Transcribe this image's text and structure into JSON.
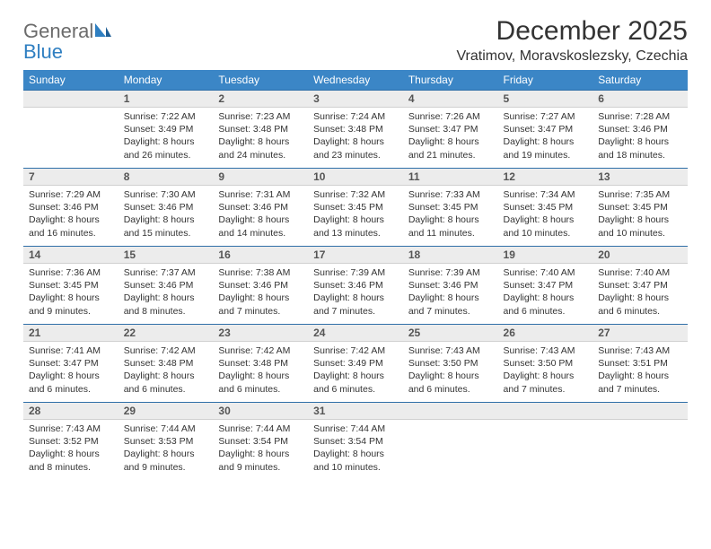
{
  "brand": {
    "general": "General",
    "blue": "Blue"
  },
  "title": "December 2025",
  "location": "Vratimov, Moravskoslezsky, Czechia",
  "day_headers": [
    "Sunday",
    "Monday",
    "Tuesday",
    "Wednesday",
    "Thursday",
    "Friday",
    "Saturday"
  ],
  "colors": {
    "header_bg": "#3b86c6",
    "header_text": "#ffffff",
    "daynum_bg": "#ececec",
    "daynum_border_top": "#2f6fa8",
    "logo_blue": "#2f7fc1",
    "logo_gray": "#6b6b6b",
    "text": "#333333",
    "background": "#ffffff"
  },
  "font": {
    "family": "Arial",
    "day_header_size_pt": 9,
    "daynum_size_pt": 9,
    "detail_size_pt": 8,
    "title_size_pt": 22,
    "location_size_pt": 12
  },
  "weeks": [
    {
      "nums": [
        "",
        "1",
        "2",
        "3",
        "4",
        "5",
        "6"
      ],
      "details": [
        "",
        "Sunrise: 7:22 AM\nSunset: 3:49 PM\nDaylight: 8 hours and 26 minutes.",
        "Sunrise: 7:23 AM\nSunset: 3:48 PM\nDaylight: 8 hours and 24 minutes.",
        "Sunrise: 7:24 AM\nSunset: 3:48 PM\nDaylight: 8 hours and 23 minutes.",
        "Sunrise: 7:26 AM\nSunset: 3:47 PM\nDaylight: 8 hours and 21 minutes.",
        "Sunrise: 7:27 AM\nSunset: 3:47 PM\nDaylight: 8 hours and 19 minutes.",
        "Sunrise: 7:28 AM\nSunset: 3:46 PM\nDaylight: 8 hours and 18 minutes."
      ]
    },
    {
      "nums": [
        "7",
        "8",
        "9",
        "10",
        "11",
        "12",
        "13"
      ],
      "details": [
        "Sunrise: 7:29 AM\nSunset: 3:46 PM\nDaylight: 8 hours and 16 minutes.",
        "Sunrise: 7:30 AM\nSunset: 3:46 PM\nDaylight: 8 hours and 15 minutes.",
        "Sunrise: 7:31 AM\nSunset: 3:46 PM\nDaylight: 8 hours and 14 minutes.",
        "Sunrise: 7:32 AM\nSunset: 3:45 PM\nDaylight: 8 hours and 13 minutes.",
        "Sunrise: 7:33 AM\nSunset: 3:45 PM\nDaylight: 8 hours and 11 minutes.",
        "Sunrise: 7:34 AM\nSunset: 3:45 PM\nDaylight: 8 hours and 10 minutes.",
        "Sunrise: 7:35 AM\nSunset: 3:45 PM\nDaylight: 8 hours and 10 minutes."
      ]
    },
    {
      "nums": [
        "14",
        "15",
        "16",
        "17",
        "18",
        "19",
        "20"
      ],
      "details": [
        "Sunrise: 7:36 AM\nSunset: 3:45 PM\nDaylight: 8 hours and 9 minutes.",
        "Sunrise: 7:37 AM\nSunset: 3:46 PM\nDaylight: 8 hours and 8 minutes.",
        "Sunrise: 7:38 AM\nSunset: 3:46 PM\nDaylight: 8 hours and 7 minutes.",
        "Sunrise: 7:39 AM\nSunset: 3:46 PM\nDaylight: 8 hours and 7 minutes.",
        "Sunrise: 7:39 AM\nSunset: 3:46 PM\nDaylight: 8 hours and 7 minutes.",
        "Sunrise: 7:40 AM\nSunset: 3:47 PM\nDaylight: 8 hours and 6 minutes.",
        "Sunrise: 7:40 AM\nSunset: 3:47 PM\nDaylight: 8 hours and 6 minutes."
      ]
    },
    {
      "nums": [
        "21",
        "22",
        "23",
        "24",
        "25",
        "26",
        "27"
      ],
      "details": [
        "Sunrise: 7:41 AM\nSunset: 3:47 PM\nDaylight: 8 hours and 6 minutes.",
        "Sunrise: 7:42 AM\nSunset: 3:48 PM\nDaylight: 8 hours and 6 minutes.",
        "Sunrise: 7:42 AM\nSunset: 3:48 PM\nDaylight: 8 hours and 6 minutes.",
        "Sunrise: 7:42 AM\nSunset: 3:49 PM\nDaylight: 8 hours and 6 minutes.",
        "Sunrise: 7:43 AM\nSunset: 3:50 PM\nDaylight: 8 hours and 6 minutes.",
        "Sunrise: 7:43 AM\nSunset: 3:50 PM\nDaylight: 8 hours and 7 minutes.",
        "Sunrise: 7:43 AM\nSunset: 3:51 PM\nDaylight: 8 hours and 7 minutes."
      ]
    },
    {
      "nums": [
        "28",
        "29",
        "30",
        "31",
        "",
        "",
        ""
      ],
      "details": [
        "Sunrise: 7:43 AM\nSunset: 3:52 PM\nDaylight: 8 hours and 8 minutes.",
        "Sunrise: 7:44 AM\nSunset: 3:53 PM\nDaylight: 8 hours and 9 minutes.",
        "Sunrise: 7:44 AM\nSunset: 3:54 PM\nDaylight: 8 hours and 9 minutes.",
        "Sunrise: 7:44 AM\nSunset: 3:54 PM\nDaylight: 8 hours and 10 minutes.",
        "",
        "",
        ""
      ]
    }
  ]
}
